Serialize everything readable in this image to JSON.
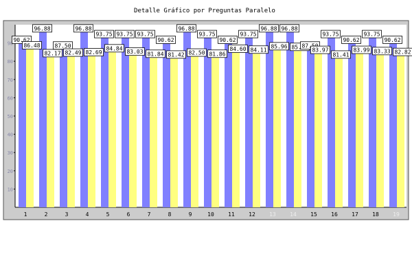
{
  "chart_data": {
    "type": "bar",
    "title": "Detalle Gráfico por Preguntas Paralelo",
    "xlabel": "",
    "ylabel": "",
    "ylim": [
      0,
      100
    ],
    "yticks": [
      10,
      20,
      30,
      40,
      50,
      60,
      70,
      80,
      90
    ],
    "grid": false,
    "legend": "none",
    "categories": [
      "1",
      "2",
      "3",
      "4",
      "5",
      "6",
      "7",
      "8",
      "9",
      "10",
      "11",
      "12",
      "13",
      "14",
      "15",
      "16",
      "17",
      "18",
      "19"
    ],
    "series": [
      {
        "color": "#8080ff",
        "values": [
          90.62,
          96.88,
          87.5,
          96.88,
          93.75,
          93.75,
          93.75,
          90.62,
          96.88,
          93.75,
          90.62,
          93.75,
          96.88,
          96.88,
          87.5,
          93.75,
          90.62,
          93.75,
          90.62
        ],
        "labels": [
          "90.62",
          "96.88",
          "87.50",
          "96.88",
          "93.75",
          "93.75",
          "93.75",
          "90.62",
          "96.88",
          "93.75",
          "90.62",
          "93.75",
          "96.88",
          "96.88",
          "87.50",
          "93.75",
          "90.62",
          "93.75",
          "90.62"
        ]
      },
      {
        "color": "#ffff80",
        "values": [
          86.48,
          82.17,
          82.49,
          82.69,
          84.84,
          83.03,
          81.84,
          81.42,
          82.5,
          81.86,
          84.6,
          84.11,
          85.96,
          85.61,
          83.97,
          81.41,
          83.99,
          83.33,
          82.82
        ],
        "labels": [
          "86.48",
          "82.17",
          "82.49",
          "82.69",
          "84.84",
          "83.03",
          "81.84",
          "81.42",
          "82.50",
          "81.86",
          "84.60",
          "84.11",
          "85.96",
          "85.61",
          "83.97",
          "81.41",
          "83.99",
          "83.33",
          "82.82"
        ]
      }
    ],
    "colors": {
      "panel": "#cccccc",
      "plot_background": "#ffffff",
      "axis": "#000000",
      "category_label": "#000000",
      "faded_category_label": "#eeeeee",
      "value_label_box": "#ffffff"
    }
  }
}
